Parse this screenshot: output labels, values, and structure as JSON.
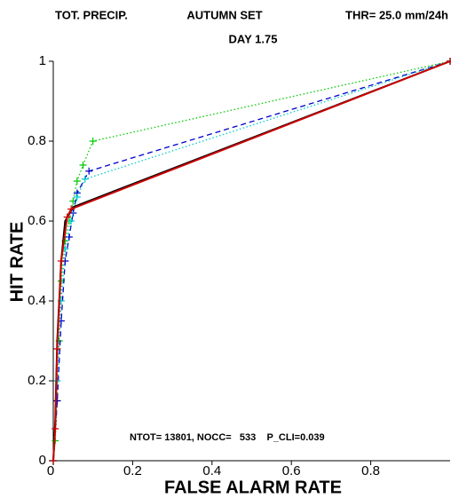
{
  "chart_data": {
    "type": "line",
    "title": "TOT. PRECIP.",
    "subtitle": "AUTUMN SET",
    "threshold": "THR= 25.0 mm/24h",
    "day": "DAY 1.75",
    "annotation": "NTOT= 13801, NOCC=   533    P_CLI=0.039",
    "xlabel": "FALSE ALARM RATE",
    "ylabel": "HIT RATE",
    "xlim": [
      0,
      1
    ],
    "ylim": [
      0,
      1
    ],
    "xticks": [
      0,
      0.2,
      0.4,
      0.6,
      0.8
    ],
    "yticks": [
      0,
      0.2,
      0.4,
      0.6,
      0.8,
      1
    ],
    "series": [
      {
        "color": "#00cc00",
        "dash": "dotted",
        "markers": true,
        "x": [
          0,
          0.005,
          0.01,
          0.015,
          0.02,
          0.03,
          0.04,
          0.05,
          0.06,
          0.075,
          0.1,
          1
        ],
        "y": [
          0,
          0.05,
          0.15,
          0.3,
          0.45,
          0.55,
          0.6,
          0.65,
          0.7,
          0.74,
          0.8,
          1
        ]
      },
      {
        "color": "#0000cc",
        "dash": "dashed",
        "markers": true,
        "x": [
          0,
          0.01,
          0.02,
          0.03,
          0.04,
          0.05,
          0.06,
          0.09,
          1
        ],
        "y": [
          0,
          0.15,
          0.35,
          0.5,
          0.56,
          0.62,
          0.67,
          0.725,
          1
        ]
      },
      {
        "color": "#00cccc",
        "dash": "dotted",
        "markers": true,
        "x": [
          0,
          0.01,
          0.02,
          0.03,
          0.045,
          0.06,
          0.08,
          1
        ],
        "y": [
          0,
          0.2,
          0.4,
          0.53,
          0.6,
          0.66,
          0.705,
          1
        ]
      },
      {
        "color": "#000000",
        "dash": "solid",
        "markers": false,
        "x": [
          0,
          0.005,
          0.01,
          0.02,
          0.03,
          0.05,
          1
        ],
        "y": [
          0,
          0.1,
          0.3,
          0.5,
          0.6,
          0.635,
          1
        ]
      },
      {
        "color": "#cc0000",
        "dash": "solid",
        "markers": true,
        "x": [
          0,
          0.005,
          0.01,
          0.02,
          0.035,
          0.045,
          1
        ],
        "y": [
          0,
          0.08,
          0.28,
          0.5,
          0.61,
          0.63,
          1
        ]
      }
    ]
  }
}
